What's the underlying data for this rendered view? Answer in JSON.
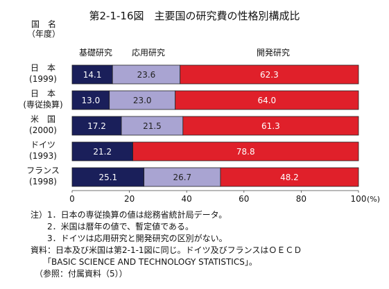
{
  "title": "第2-1-16図　主要国の研究費の性格別構成比",
  "header": {
    "country": "国　名",
    "year": "（年度）"
  },
  "chart_data": {
    "type": "stacked-bar-horizontal",
    "title": "第2-1-16図　主要国の研究費の性格別構成比",
    "series_labels": [
      "基礎研究",
      "応用研究",
      "開発研究"
    ],
    "colors": [
      "#1a1f5a",
      "#a9a4d2",
      "#e0202a"
    ],
    "categories": [
      {
        "name": "日　本",
        "sub": "(1999)"
      },
      {
        "name": "日　本",
        "sub": "(専従換算)"
      },
      {
        "name": "米　国",
        "sub": "(2000)"
      },
      {
        "name": "ドイツ",
        "sub": "(1993)"
      },
      {
        "name": "フランス",
        "sub": "(1998)"
      }
    ],
    "series": [
      {
        "name": "基礎研究",
        "values": [
          14.1,
          13.0,
          17.2,
          21.2,
          25.1
        ],
        "labels": [
          "14.1",
          "13.0",
          "17.2",
          "21.2",
          "25.1"
        ]
      },
      {
        "name": "応用研究",
        "values": [
          23.6,
          23.0,
          21.5,
          0,
          26.7
        ],
        "labels": [
          "23.6",
          "23.0",
          "21.5",
          "",
          "26.7"
        ]
      },
      {
        "name": "開発研究",
        "values": [
          62.3,
          64.0,
          61.3,
          78.8,
          48.2
        ],
        "labels": [
          "62.3",
          "64.0",
          "61.3",
          "78.8",
          "48.2"
        ]
      }
    ],
    "x_ticks": [
      "0",
      "20",
      "40",
      "60",
      "80",
      "100"
    ],
    "x_unit": "(%)",
    "xlim": [
      0,
      100
    ]
  },
  "notes": [
    "注）1．日本の専従換算の値は総務省統計局データ。",
    "　　2．米国は暦年の値で、暫定値である。",
    "　　3．ドイツは応用研究と開発研究の区別がない。",
    "資料：日本及び米国は第2-1-1図に同じ。ドイツ及びフランスはＯＥＣＤ",
    "　　「BASIC SCIENCE AND TECHNOLOGY STATISTICS」。",
    "　（参照：付属資料（5））"
  ]
}
